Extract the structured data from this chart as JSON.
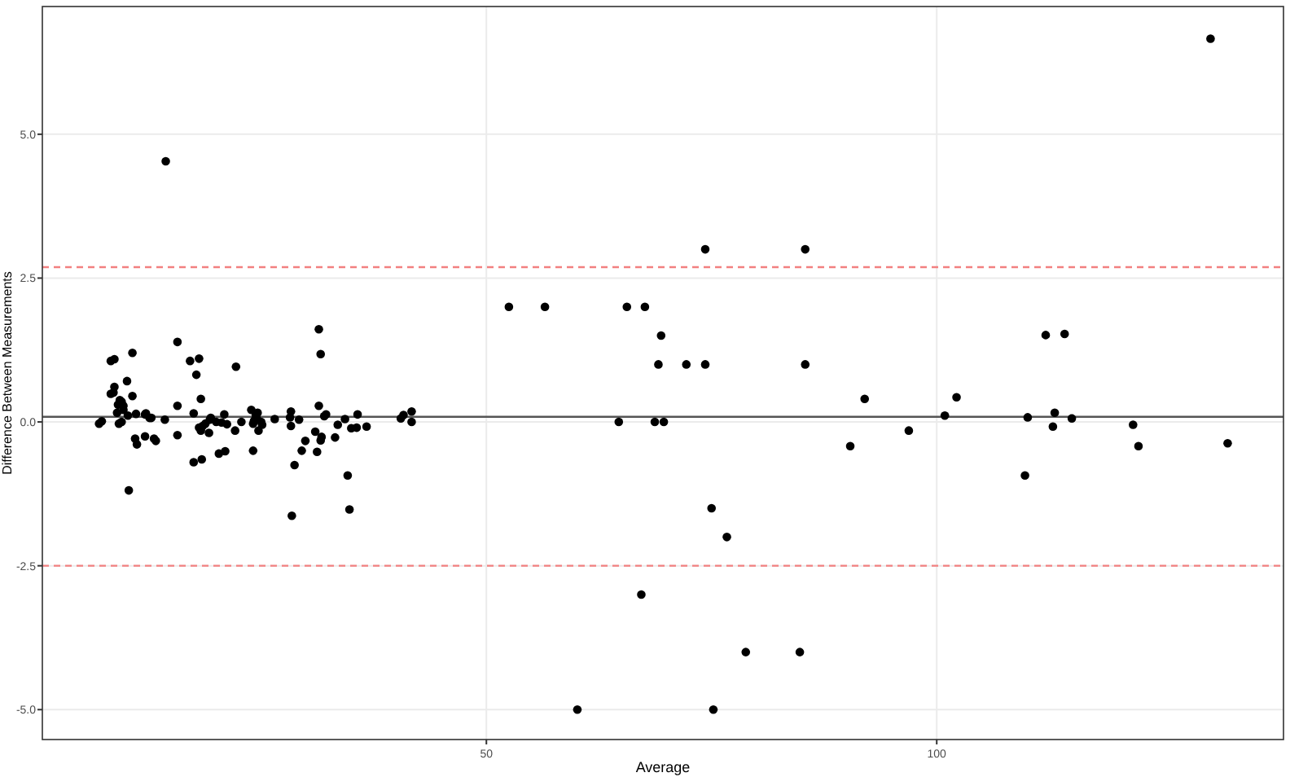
{
  "chart_data": {
    "type": "scatter",
    "xlabel": "Average",
    "ylabel": "Difference Between Measurements",
    "xlim": [
      0.7,
      138.5
    ],
    "ylim": [
      -5.52,
      7.22
    ],
    "xticks": [
      50,
      100
    ],
    "yticks": [
      {
        "value": -5,
        "label": "-5.0"
      },
      {
        "value": -2.5,
        "label": "-2.5"
      },
      {
        "value": 0,
        "label": "0.0"
      },
      {
        "value": 2.5,
        "label": "2.5"
      },
      {
        "value": 5,
        "label": "5.0"
      }
    ],
    "grid": true,
    "marker": "circle",
    "ref_lines": [
      {
        "axis": "y",
        "value": 0.09,
        "color": "#555555",
        "line_style": "solid"
      },
      {
        "axis": "y",
        "value": 2.69,
        "color": "#f28080",
        "line_style": "dashed"
      },
      {
        "axis": "y",
        "value": -2.5,
        "color": "#f28080",
        "line_style": "dashed"
      }
    ],
    "series": [
      {
        "color": "#000000",
        "x": [
          7.0,
          7.3,
          8.3,
          8.6,
          8.7,
          8.3,
          8.7,
          9.1,
          9.0,
          9.3,
          9.5,
          9.7,
          9.2,
          9.5,
          9.7,
          10.2,
          10.1,
          10.7,
          10.7,
          11.1,
          11.0,
          11.2,
          10.3,
          12.1,
          12.1,
          12.2,
          12.6,
          12.8,
          13.1,
          13.3,
          14.3,
          14.4,
          15.7,
          15.7,
          15.7,
          17.1,
          17.5,
          17.5,
          17.8,
          18.1,
          18.3,
          18.1,
          18.3,
          18.4,
          18.5,
          18.8,
          19.2,
          19.3,
          19.4,
          20.0,
          20.3,
          20.6,
          20.9,
          21.0,
          21.2,
          22.1,
          22.2,
          22.8,
          23.9,
          24.1,
          24.1,
          24.2,
          24.4,
          24.5,
          24.6,
          24.7,
          25.0,
          25.1,
          26.5,
          28.2,
          28.3,
          28.3,
          28.4,
          28.7,
          29.2,
          29.5,
          29.9,
          31.0,
          31.2,
          31.4,
          31.4,
          31.6,
          31.6,
          31.7,
          32.0,
          32.2,
          33.2,
          33.5,
          34.3,
          34.6,
          34.8,
          35.0,
          35.6,
          35.7,
          36.7,
          40.5,
          40.8,
          41.7,
          41.7,
          74.3,
          85.4,
          52.5,
          56.5,
          65.6,
          67.6,
          69.4,
          69.1,
          72.2,
          74.3,
          85.4,
          92.0,
          64.7,
          68.7,
          69.7,
          90.4,
          75.0,
          76.7,
          67.2,
          78.8,
          84.8,
          60.1,
          75.2,
          130.4,
          96.9,
          100.9,
          102.2,
          112.1,
          114.2,
          110.1,
          113.1,
          112.9,
          115.0,
          109.8,
          121.8,
          122.4,
          132.3
        ],
        "values": [
          -0.03,
          0.01,
          0.49,
          0.51,
          0.61,
          1.06,
          1.09,
          0.3,
          0.16,
          0.38,
          0.35,
          0.28,
          -0.03,
          0.0,
          0.21,
          0.11,
          0.71,
          0.45,
          1.2,
          0.14,
          -0.29,
          -0.39,
          -1.19,
          0.13,
          -0.25,
          0.15,
          0.07,
          0.07,
          -0.29,
          -0.33,
          0.04,
          4.53,
          1.39,
          0.28,
          -0.23,
          1.06,
          0.15,
          -0.7,
          0.82,
          1.1,
          0.4,
          -0.1,
          -0.15,
          -0.65,
          -0.07,
          -0.03,
          -0.19,
          0.04,
          0.07,
          0.0,
          -0.55,
          -0.01,
          0.13,
          -0.51,
          -0.04,
          -0.15,
          0.96,
          0.0,
          0.21,
          -0.5,
          -0.03,
          0.02,
          0.12,
          0.06,
          0.16,
          -0.15,
          0.0,
          -0.05,
          0.05,
          0.08,
          0.18,
          -0.07,
          -1.63,
          -0.75,
          0.04,
          -0.5,
          -0.33,
          -0.17,
          -0.52,
          0.28,
          1.61,
          1.18,
          -0.32,
          -0.26,
          0.1,
          0.13,
          -0.27,
          -0.05,
          0.05,
          -0.93,
          -1.52,
          -0.11,
          -0.1,
          0.13,
          -0.08,
          0.06,
          0.12,
          0.18,
          0.0,
          3,
          3,
          2,
          2,
          2,
          2,
          1.5,
          1,
          1,
          1,
          1,
          0.4,
          0,
          0,
          0,
          -0.42,
          -1.5,
          -2,
          -3,
          -4,
          -4,
          -5,
          -5,
          6.66,
          -0.15,
          0.11,
          0.43,
          1.51,
          1.53,
          0.08,
          0.16,
          -0.08,
          0.06,
          -0.93,
          -0.05,
          -0.42,
          -0.37
        ]
      }
    ]
  }
}
